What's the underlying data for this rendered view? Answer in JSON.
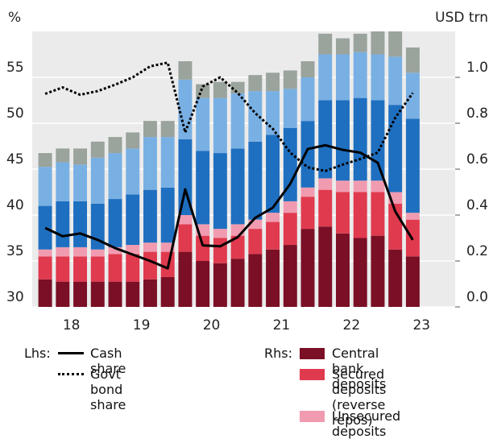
{
  "chart_data": {
    "type": "bar",
    "stacked": true,
    "ylabel": "%",
    "y2label": "USD trn",
    "lhs_label": "Lhs:",
    "rhs_label": "Rhs:",
    "x": [
      2018.125,
      2018.375,
      2018.625,
      2018.875,
      2019.125,
      2019.375,
      2019.625,
      2019.875,
      2020.125,
      2020.375,
      2020.625,
      2020.875,
      2021.125,
      2021.375,
      2021.625,
      2021.875,
      2022.125,
      2022.375,
      2022.625,
      2022.875,
      2023.125,
      2023.375
    ],
    "xlim": [
      2017.94,
      2023.98
    ],
    "xticks": [
      {
        "value": 2018.5,
        "label": "18"
      },
      {
        "value": 2019.5,
        "label": "19"
      },
      {
        "value": 2020.5,
        "label": "20"
      },
      {
        "value": 2021.5,
        "label": "21"
      },
      {
        "value": 2022.5,
        "label": "22"
      },
      {
        "value": 2023.5,
        "label": "23"
      }
    ],
    "ylim": [
      30,
      60
    ],
    "yticks": [
      30,
      35,
      40,
      45,
      50,
      55
    ],
    "y2lim": [
      0,
      1.2
    ],
    "y2ticks": [
      {
        "value": 0,
        "label": "0.0"
      },
      0.2,
      0.4,
      0.6,
      0.8,
      {
        "value": 1,
        "label": "1.0"
      }
    ],
    "grid": true,
    "series": [
      {
        "name": "Central bank deposits",
        "color": "#7a0f25",
        "axis": "y2",
        "values": [
          0.12,
          0.11,
          0.11,
          0.11,
          0.11,
          0.11,
          0.12,
          0.13,
          0.24,
          0.2,
          0.19,
          0.21,
          0.23,
          0.25,
          0.27,
          0.34,
          0.35,
          0.32,
          0.3,
          0.31,
          0.25,
          0.22
        ]
      },
      {
        "name": "Secured deposits\n(reverse repos)",
        "color": "#e03a4e",
        "axis": "y2",
        "values": [
          0.1,
          0.11,
          0.11,
          0.11,
          0.12,
          0.12,
          0.12,
          0.11,
          0.12,
          0.11,
          0.11,
          0.1,
          0.11,
          0.12,
          0.14,
          0.14,
          0.16,
          0.18,
          0.2,
          0.19,
          0.2,
          0.16
        ]
      },
      {
        "name": "Unsecured deposits",
        "color": "#f19bb0",
        "axis": "y2",
        "values": [
          0.03,
          0.04,
          0.04,
          0.03,
          0.03,
          0.04,
          0.04,
          0.04,
          0.04,
          0.05,
          0.04,
          0.05,
          0.04,
          0.04,
          0.05,
          0.04,
          0.05,
          0.05,
          0.05,
          0.05,
          0.05,
          0.03
        ]
      },
      {
        "color": "#1f6fc0",
        "axis": "y2",
        "values": [
          0.19,
          0.2,
          0.2,
          0.2,
          0.21,
          0.22,
          0.23,
          0.24,
          0.33,
          0.32,
          0.33,
          0.33,
          0.34,
          0.34,
          0.32,
          0.29,
          0.34,
          0.35,
          0.36,
          0.35,
          0.38,
          0.41
        ]
      },
      {
        "color": "#79b0e3",
        "axis": "y2",
        "values": [
          0.17,
          0.17,
          0.16,
          0.2,
          0.2,
          0.2,
          0.23,
          0.22,
          0.26,
          0.23,
          0.24,
          0.24,
          0.22,
          0.19,
          0.17,
          0.19,
          0.2,
          0.2,
          0.2,
          0.2,
          0.21,
          0.2
        ]
      },
      {
        "color": "#9aa39c",
        "axis": "y2",
        "values": [
          0.06,
          0.06,
          0.07,
          0.07,
          0.07,
          0.07,
          0.07,
          0.07,
          0.08,
          0.06,
          0.07,
          0.05,
          0.07,
          0.08,
          0.08,
          0.07,
          0.09,
          0.07,
          0.08,
          0.1,
          0.11,
          0.11
        ]
      },
      {
        "name": "Cash share",
        "type": "line",
        "style": "solid",
        "color": "#000000",
        "axis": "y",
        "values": [
          38.6,
          37.7,
          38.0,
          37.3,
          36.4,
          35.7,
          35.0,
          34.2,
          42.8,
          36.7,
          36.6,
          37.6,
          39.7,
          40.8,
          43.4,
          47.2,
          47.6,
          47.1,
          46.8,
          45.7,
          40.4,
          37.3
        ]
      },
      {
        "name": "Govt bond share",
        "type": "line",
        "style": "dotted",
        "color": "#000000",
        "axis": "y",
        "values": [
          53.2,
          53.9,
          53.1,
          53.5,
          54.2,
          55.0,
          56.2,
          56.6,
          49.0,
          54.0,
          55.0,
          53.3,
          51.1,
          49.4,
          46.8,
          45.2,
          44.8,
          45.5,
          46.1,
          46.8,
          50.6,
          53.3
        ]
      }
    ]
  }
}
